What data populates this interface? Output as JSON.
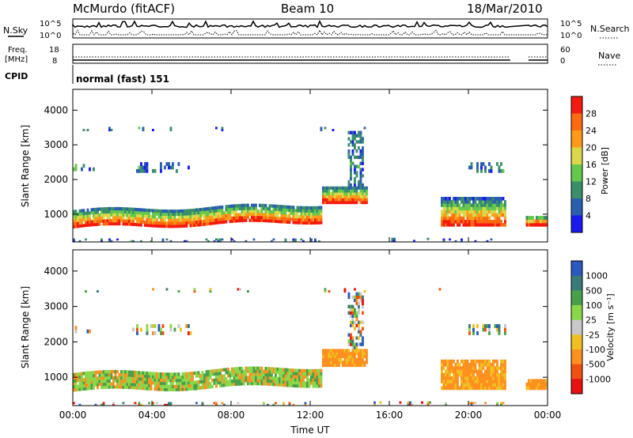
{
  "header": {
    "station": "McMurdo (fitACF)",
    "beam": "Beam 10",
    "date": "18/Mar/2010"
  },
  "noise_panel": {
    "left_label": "N.Sky",
    "right_label": "N.Search",
    "left_ticks": [
      "10^5",
      "10^0"
    ],
    "right_ticks": [
      "10^5",
      "10^0"
    ]
  },
  "freq_panel": {
    "left_label_1": "Freq.",
    "left_label_2": "[MHz]",
    "left_ticks": [
      "18",
      "8"
    ],
    "right_ticks": [
      "60",
      "0"
    ],
    "right_label": "Nave"
  },
  "cpid": {
    "label": "CPID",
    "value": "normal (fast) 151"
  },
  "chart_data": [
    {
      "type": "heatmap",
      "panel": "power",
      "ylabel": "Slant Range [km]",
      "y_ticks": [
        1000,
        2000,
        3000,
        4000
      ],
      "ylim": [
        200,
        4600
      ],
      "x_ticks": [
        "00:00",
        "04:00",
        "08:00",
        "12:00",
        "16:00",
        "20:00",
        "00:00"
      ],
      "xlim_hours": [
        0,
        24
      ],
      "colorbar": {
        "label": "Power [dB]",
        "ticks": [
          4,
          8,
          12,
          16,
          20,
          24,
          28
        ],
        "colors": [
          "#1a1af0",
          "#2a5fb0",
          "#3a8f6a",
          "#63c84c",
          "#d8d84a",
          "#ff9a18",
          "#ff6a10",
          "#f41a10"
        ]
      }
    },
    {
      "type": "heatmap",
      "panel": "velocity",
      "ylabel": "Slant Range [km]",
      "y_ticks": [
        1000,
        2000,
        3000,
        4000
      ],
      "ylim": [
        200,
        4600
      ],
      "x_ticks": [
        "00:00",
        "04:00",
        "08:00",
        "12:00",
        "16:00",
        "20:00",
        "00:00"
      ],
      "xlim_hours": [
        0,
        24
      ],
      "xlabel": "Time UT",
      "colorbar": {
        "label": "Velocity [m s⁻¹]",
        "ticks": [
          "1000",
          "500",
          "100",
          "25",
          "-25",
          "-100",
          "-500",
          "-1000"
        ],
        "colors": [
          "#2a5ac0",
          "#3a7a7a",
          "#4aa04a",
          "#8ad84a",
          "#c8c8c8",
          "#f0c020",
          "#ff9020",
          "#f05010",
          "#e81010"
        ]
      }
    }
  ]
}
